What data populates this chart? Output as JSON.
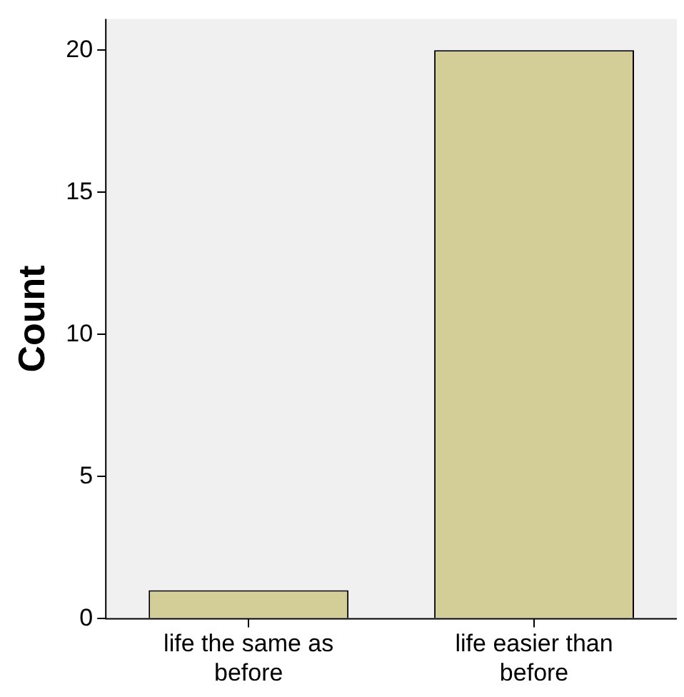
{
  "chart_data": {
    "type": "bar",
    "ylabel": "Count",
    "categories": [
      "life the same as before",
      "life easier than before"
    ],
    "values": [
      1,
      20
    ],
    "color": "#d3ce97",
    "ylim": [
      0,
      21.1
    ],
    "yticks": [
      0,
      5,
      10,
      15,
      20
    ],
    "grid": false,
    "legend": false
  }
}
